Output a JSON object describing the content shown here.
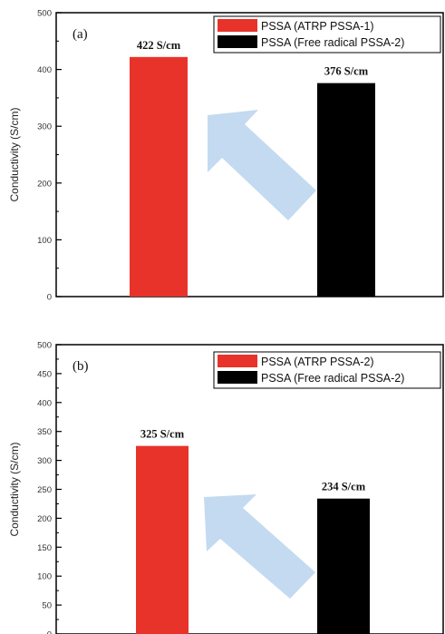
{
  "chart_data": [
    {
      "type": "bar",
      "panel_label": "(a)",
      "ylabel": "Conductivity (S/cm)",
      "ylim": [
        0,
        500
      ],
      "yticks": [
        0,
        100,
        200,
        300,
        400,
        500
      ],
      "categories": [
        "PSSA (ATRP PSSA-1)",
        "PSSA (Free radical PSSA-2)"
      ],
      "values": [
        422,
        376
      ],
      "data_labels": [
        "422 S/cm",
        "376 S/cm"
      ],
      "colors": [
        "#e8332a",
        "#000000"
      ],
      "legend": [
        "PSSA (ATRP PSSA-1)",
        "PSSA (Free radical PSSA-2)"
      ],
      "legend_position": "top-right",
      "annotation": "light-blue arrow pointing up-left from second bar toward first bar"
    },
    {
      "type": "bar",
      "panel_label": "(b)",
      "ylabel": "Conductivity (S/cm)",
      "ylim": [
        0,
        500
      ],
      "yticks": [
        0,
        50,
        100,
        150,
        200,
        250,
        300,
        350,
        400,
        450,
        500
      ],
      "categories": [
        "PSSA (ATRP PSSA-2)",
        "PSSA (Free radical PSSA-2)"
      ],
      "values": [
        325,
        234
      ],
      "data_labels": [
        "325 S/cm",
        "234 S/cm"
      ],
      "colors": [
        "#e8332a",
        "#000000"
      ],
      "legend": [
        "PSSA (ATRP PSSA-2)",
        "PSSA (Free radical PSSA-2)"
      ],
      "legend_position": "top-right",
      "annotation": "light-blue arrow pointing up-left from second bar toward first bar"
    }
  ]
}
